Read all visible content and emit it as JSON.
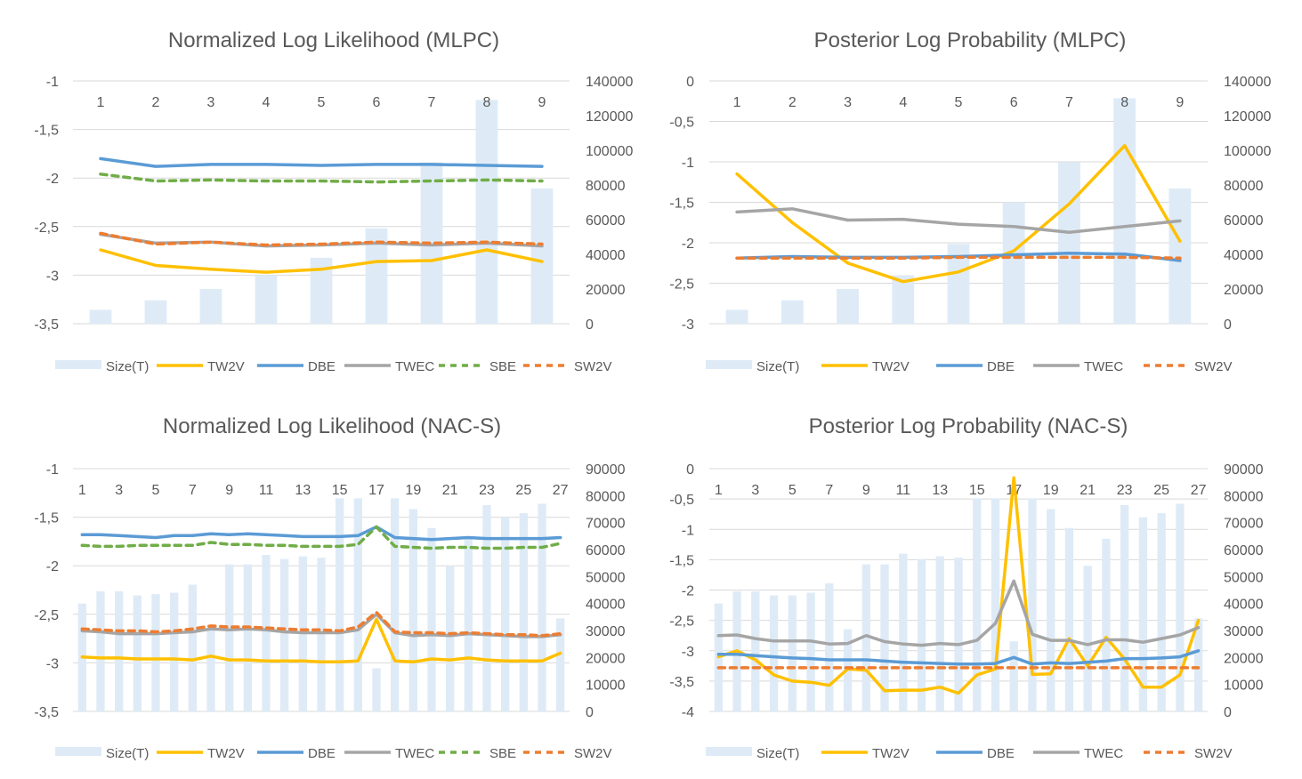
{
  "chart_data": [
    {
      "type": "bar",
      "title": "Normalized Log Likelihood (MLPC)",
      "categories": [
        "1",
        "2",
        "3",
        "4",
        "5",
        "6",
        "7",
        "8",
        "9"
      ],
      "ylim": [
        -3.5,
        -1
      ],
      "yticks": [
        -1,
        -1.5,
        -2,
        -2.5,
        -3,
        -3.5
      ],
      "ytick_labels": [
        "-1",
        "-1,5",
        "-2",
        "-2,5",
        "-3",
        "-3,5"
      ],
      "y2lim": [
        0,
        140000
      ],
      "y2ticks": [
        0,
        20000,
        40000,
        60000,
        80000,
        100000,
        120000,
        140000
      ],
      "y2tick_labels": [
        "0",
        "20000",
        "40000",
        "60000",
        "80000",
        "100000",
        "120000",
        "140000"
      ],
      "xtick_labels": [
        "1",
        "2",
        "3",
        "4",
        "5",
        "6",
        "7",
        "8",
        "9"
      ],
      "bars": {
        "name": "Size(T)",
        "values": [
          8000,
          13500,
          20000,
          28000,
          38000,
          55000,
          93000,
          129000,
          78000
        ]
      },
      "series": [
        {
          "name": "TW2V",
          "values": [
            -2.74,
            -2.9,
            -2.94,
            -2.97,
            -2.94,
            -2.86,
            -2.85,
            -2.74,
            -2.86
          ]
        },
        {
          "name": "DBE",
          "values": [
            -1.8,
            -1.88,
            -1.86,
            -1.86,
            -1.87,
            -1.86,
            -1.86,
            -1.87,
            -1.88
          ]
        },
        {
          "name": "TWEC",
          "values": [
            -2.58,
            -2.67,
            -2.66,
            -2.7,
            -2.69,
            -2.67,
            -2.69,
            -2.67,
            -2.7
          ]
        },
        {
          "name": "SBE",
          "values": [
            -1.96,
            -2.03,
            -2.02,
            -2.03,
            -2.03,
            -2.04,
            -2.03,
            -2.02,
            -2.03
          ]
        },
        {
          "name": "SW2V",
          "values": [
            -2.57,
            -2.68,
            -2.66,
            -2.69,
            -2.68,
            -2.66,
            -2.67,
            -2.66,
            -2.68
          ]
        }
      ],
      "legend": [
        "Size(T)",
        "TW2V",
        "DBE",
        "TWEC",
        "SBE",
        "SW2V"
      ]
    },
    {
      "type": "bar",
      "title": "Posterior Log Probability (MLPC)",
      "categories": [
        "1",
        "2",
        "3",
        "4",
        "5",
        "6",
        "7",
        "8",
        "9"
      ],
      "ylim": [
        -3,
        0
      ],
      "yticks": [
        0,
        -0.5,
        -1,
        -1.5,
        -2,
        -2.5,
        -3
      ],
      "ytick_labels": [
        "0",
        "-0,5",
        "-1",
        "-1,5",
        "-2",
        "-2,5",
        "-3"
      ],
      "y2lim": [
        0,
        140000
      ],
      "y2ticks": [
        0,
        20000,
        40000,
        60000,
        80000,
        100000,
        120000,
        140000
      ],
      "y2tick_labels": [
        "0",
        "20000",
        "40000",
        "60000",
        "80000",
        "100000",
        "120000",
        "140000"
      ],
      "xtick_labels": [
        "1",
        "2",
        "3",
        "4",
        "5",
        "6",
        "7",
        "8",
        "9"
      ],
      "bars": {
        "name": "Size(T)",
        "values": [
          8000,
          13500,
          20000,
          28000,
          46000,
          70000,
          93000,
          130000,
          78000
        ]
      },
      "series": [
        {
          "name": "TW2V",
          "values": [
            -1.15,
            -1.75,
            -2.25,
            -2.48,
            -2.36,
            -2.1,
            -1.52,
            -0.8,
            -1.98
          ]
        },
        {
          "name": "DBE",
          "values": [
            -2.19,
            -2.17,
            -2.18,
            -2.18,
            -2.17,
            -2.15,
            -2.13,
            -2.14,
            -2.22
          ]
        },
        {
          "name": "TWEC",
          "values": [
            -1.62,
            -1.58,
            -1.72,
            -1.71,
            -1.77,
            -1.8,
            -1.87,
            -1.8,
            -1.73
          ]
        },
        {
          "name": "SW2V",
          "values": [
            -2.19,
            -2.19,
            -2.19,
            -2.19,
            -2.18,
            -2.18,
            -2.18,
            -2.18,
            -2.19
          ]
        }
      ],
      "legend": [
        "Size(T)",
        "TW2V",
        "DBE",
        "TWEC",
        "SW2V"
      ]
    },
    {
      "type": "bar",
      "title": "Normalized Log Likelihood (NAC-S)",
      "categories": [
        "1",
        "2",
        "3",
        "4",
        "5",
        "6",
        "7",
        "8",
        "9",
        "10",
        "11",
        "12",
        "13",
        "14",
        "15",
        "16",
        "17",
        "18",
        "19",
        "20",
        "21",
        "22",
        "23",
        "24",
        "25",
        "26",
        "27"
      ],
      "ylim": [
        -3.5,
        -1
      ],
      "yticks": [
        -1,
        -1.5,
        -2,
        -2.5,
        -3,
        -3.5
      ],
      "ytick_labels": [
        "-1",
        "-1,5",
        "-2",
        "-2,5",
        "-3",
        "-3,5"
      ],
      "y2lim": [
        0,
        90000
      ],
      "y2ticks": [
        0,
        10000,
        20000,
        30000,
        40000,
        50000,
        60000,
        70000,
        80000,
        90000
      ],
      "y2tick_labels": [
        "0",
        "10000",
        "20000",
        "30000",
        "40000",
        "50000",
        "60000",
        "70000",
        "80000",
        "90000"
      ],
      "xtick_labels": [
        "1",
        "3",
        "5",
        "7",
        "9",
        "11",
        "13",
        "15",
        "17",
        "19",
        "21",
        "23",
        "25",
        "27"
      ],
      "bars": {
        "name": "Size(T)",
        "values": [
          40000,
          44500,
          44500,
          43000,
          43500,
          44000,
          47000,
          30000,
          54500,
          54500,
          58000,
          56500,
          57500,
          57000,
          79000,
          79000,
          16000,
          79000,
          75000,
          68000,
          54000,
          64000,
          76500,
          72000,
          73500,
          77000,
          34500
        ]
      },
      "series": [
        {
          "name": "TW2V",
          "values": [
            -2.94,
            -2.95,
            -2.95,
            -2.96,
            -2.96,
            -2.96,
            -2.97,
            -2.93,
            -2.97,
            -2.97,
            -2.98,
            -2.98,
            -2.98,
            -2.99,
            -2.99,
            -2.98,
            -2.55,
            -2.98,
            -2.99,
            -2.96,
            -2.97,
            -2.95,
            -2.97,
            -2.98,
            -2.98,
            -2.98,
            -2.9
          ]
        },
        {
          "name": "DBE",
          "values": [
            -1.68,
            -1.68,
            -1.69,
            -1.7,
            -1.71,
            -1.69,
            -1.69,
            -1.67,
            -1.68,
            -1.67,
            -1.68,
            -1.69,
            -1.7,
            -1.7,
            -1.7,
            -1.69,
            -1.6,
            -1.71,
            -1.72,
            -1.73,
            -1.72,
            -1.71,
            -1.72,
            -1.72,
            -1.72,
            -1.72,
            -1.71
          ]
        },
        {
          "name": "TWEC",
          "values": [
            -2.67,
            -2.68,
            -2.7,
            -2.7,
            -2.7,
            -2.69,
            -2.68,
            -2.65,
            -2.66,
            -2.65,
            -2.66,
            -2.68,
            -2.69,
            -2.69,
            -2.69,
            -2.66,
            -2.5,
            -2.69,
            -2.72,
            -2.71,
            -2.72,
            -2.7,
            -2.71,
            -2.72,
            -2.73,
            -2.73,
            -2.71
          ]
        },
        {
          "name": "SBE",
          "values": [
            -1.79,
            -1.8,
            -1.8,
            -1.79,
            -1.79,
            -1.79,
            -1.79,
            -1.76,
            -1.78,
            -1.78,
            -1.79,
            -1.79,
            -1.8,
            -1.8,
            -1.8,
            -1.78,
            -1.6,
            -1.8,
            -1.81,
            -1.82,
            -1.81,
            -1.81,
            -1.82,
            -1.82,
            -1.81,
            -1.81,
            -1.77
          ]
        },
        {
          "name": "SW2V",
          "values": [
            -2.65,
            -2.66,
            -2.67,
            -2.67,
            -2.68,
            -2.67,
            -2.65,
            -2.62,
            -2.63,
            -2.63,
            -2.64,
            -2.65,
            -2.66,
            -2.66,
            -2.67,
            -2.63,
            -2.48,
            -2.68,
            -2.69,
            -2.69,
            -2.7,
            -2.69,
            -2.7,
            -2.71,
            -2.71,
            -2.72,
            -2.7
          ]
        }
      ],
      "legend": [
        "Size(T)",
        "TW2V",
        "DBE",
        "TWEC",
        "SBE",
        "SW2V"
      ]
    },
    {
      "type": "bar",
      "title": "Posterior Log Probability (NAC-S)",
      "categories": [
        "1",
        "2",
        "3",
        "4",
        "5",
        "6",
        "7",
        "8",
        "9",
        "10",
        "11",
        "12",
        "13",
        "14",
        "15",
        "16",
        "17",
        "18",
        "19",
        "20",
        "21",
        "22",
        "23",
        "24",
        "25",
        "26",
        "27"
      ],
      "ylim": [
        -4,
        0
      ],
      "yticks": [
        0,
        -0.5,
        -1,
        -1.5,
        -2,
        -2.5,
        -3,
        -3.5,
        -4
      ],
      "ytick_labels": [
        "0",
        "-0,5",
        "-1",
        "-1,5",
        "-2",
        "-2,5",
        "-3",
        "-3,5",
        "-4"
      ],
      "y2lim": [
        0,
        90000
      ],
      "y2ticks": [
        0,
        10000,
        20000,
        30000,
        40000,
        50000,
        60000,
        70000,
        80000,
        90000
      ],
      "y2tick_labels": [
        "0",
        "10000",
        "20000",
        "30000",
        "40000",
        "50000",
        "60000",
        "70000",
        "80000",
        "90000"
      ],
      "xtick_labels": [
        "1",
        "3",
        "5",
        "7",
        "9",
        "11",
        "13",
        "15",
        "17",
        "19",
        "21",
        "23",
        "25",
        "27"
      ],
      "bars": {
        "name": "Size(T)",
        "values": [
          40000,
          44500,
          44500,
          43000,
          43000,
          44000,
          47500,
          30500,
          54500,
          54500,
          58500,
          56500,
          57500,
          57000,
          79000,
          79000,
          26000,
          79000,
          75000,
          68000,
          54000,
          64000,
          76500,
          72000,
          73500,
          77000,
          34500
        ]
      },
      "series": [
        {
          "name": "TW2V",
          "values": [
            -3.1,
            -3.0,
            -3.15,
            -3.4,
            -3.5,
            -3.52,
            -3.57,
            -3.3,
            -3.32,
            -3.66,
            -3.65,
            -3.65,
            -3.6,
            -3.7,
            -3.4,
            -3.3,
            -0.15,
            -3.39,
            -3.38,
            -2.8,
            -3.25,
            -2.78,
            -3.14,
            -3.6,
            -3.6,
            -3.4,
            -2.5
          ]
        },
        {
          "name": "DBE",
          "values": [
            -3.06,
            -3.06,
            -3.08,
            -3.1,
            -3.12,
            -3.13,
            -3.15,
            -3.15,
            -3.15,
            -3.17,
            -3.19,
            -3.2,
            -3.21,
            -3.22,
            -3.22,
            -3.21,
            -3.11,
            -3.22,
            -3.2,
            -3.21,
            -3.19,
            -3.17,
            -3.13,
            -3.13,
            -3.12,
            -3.1,
            -3.0
          ]
        },
        {
          "name": "TWEC",
          "values": [
            -2.75,
            -2.74,
            -2.8,
            -2.84,
            -2.84,
            -2.84,
            -2.89,
            -2.88,
            -2.75,
            -2.85,
            -2.89,
            -2.91,
            -2.88,
            -2.9,
            -2.83,
            -2.55,
            -1.85,
            -2.73,
            -2.83,
            -2.83,
            -2.9,
            -2.82,
            -2.82,
            -2.86,
            -2.8,
            -2.74,
            -2.62
          ]
        },
        {
          "name": "SW2V",
          "values": [
            -3.28,
            -3.28,
            -3.28,
            -3.28,
            -3.28,
            -3.28,
            -3.28,
            -3.28,
            -3.28,
            -3.28,
            -3.28,
            -3.28,
            -3.28,
            -3.28,
            -3.28,
            -3.28,
            -3.28,
            -3.28,
            -3.28,
            -3.28,
            -3.28,
            -3.28,
            -3.28,
            -3.28,
            -3.28,
            -3.28,
            -3.28
          ]
        }
      ],
      "legend": [
        "Size(T)",
        "TW2V",
        "DBE",
        "TWEC",
        "SW2V"
      ]
    }
  ],
  "style": {
    "bar_color": "#deebf7",
    "grid_color": "#d9d9d9",
    "series_colors": {
      "TW2V": "#ffc000",
      "DBE": "#5b9bd5",
      "TWEC": "#a5a5a5",
      "SBE": "#70ad47",
      "SW2V": "#ed7d31"
    },
    "dashed_series": [
      "SBE",
      "SW2V"
    ]
  }
}
